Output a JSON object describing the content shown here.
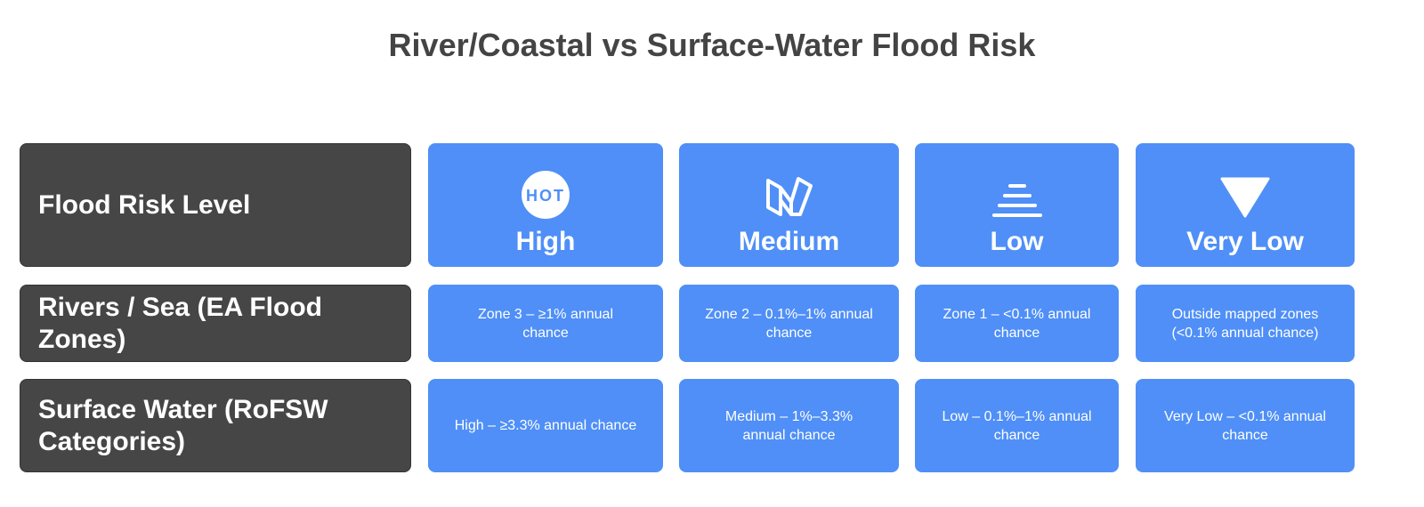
{
  "title": "River/Coastal vs Surface-Water Flood Risk",
  "table": {
    "header": [
      "Flood Risk Level",
      "High",
      "Medium",
      "Low",
      "Very Low"
    ],
    "header_badge": "HOT",
    "rows": [
      [
        "Rivers / Sea (EA Flood Zones)",
        "Zone 3 – ≥1% annual chance",
        "Zone 2 – 0.1%–1% annual chance",
        "Zone 1 – <0.1% annual chance",
        "Outside mapped zones (<0.1% annual chance)"
      ],
      [
        "Surface Water (RoFSW Categories)",
        "High – ≥3.3% annual chance",
        "Medium – 1%–3.3% annual chance",
        "Low – 0.1%–1% annual chance",
        "Very Low – <0.1% annual chance"
      ]
    ]
  }
}
